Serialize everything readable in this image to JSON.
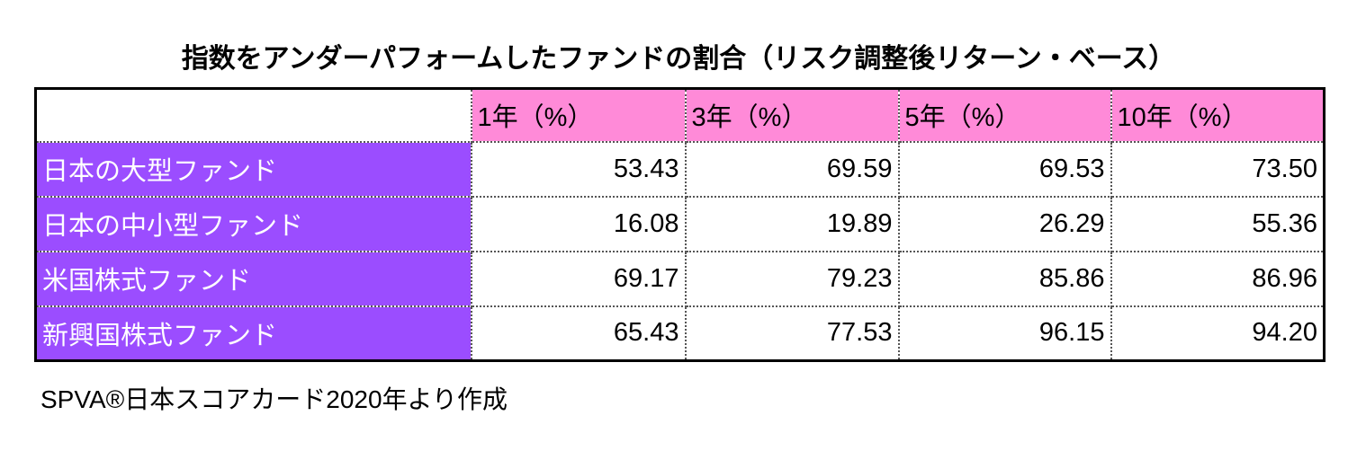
{
  "title": "指数をアンダーパフォームしたファンドの割合（リスク調整後リターン・ベース）",
  "table": {
    "header": [
      "",
      "1年（%）",
      "3年（%）",
      "5年（%）",
      "10年（%）"
    ],
    "rows": [
      [
        "日本の大型ファンド",
        "53.43",
        "69.59",
        "69.53",
        "73.50"
      ],
      [
        "日本の中小型ファンド",
        "16.08",
        "19.89",
        "26.29",
        "55.36"
      ],
      [
        "米国株式ファンド",
        "69.17",
        "79.23",
        "85.86",
        "86.96"
      ],
      [
        "新興国株式ファンド",
        "65.43",
        "77.53",
        "96.15",
        "94.20"
      ]
    ]
  },
  "footer": "SPVA®日本スコアカード2020年より作成"
}
